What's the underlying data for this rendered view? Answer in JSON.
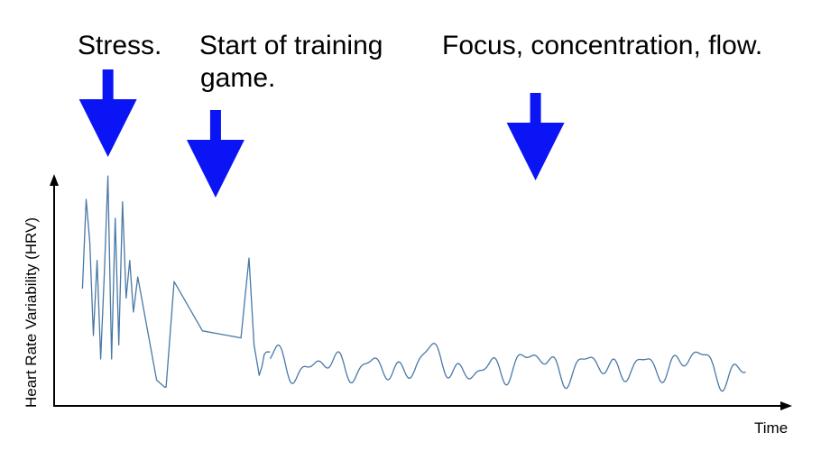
{
  "annotations": {
    "stress": "Stress.",
    "start_line1": "Start of training",
    "start_line2": "game.",
    "focus": "Focus, concentration, flow."
  },
  "colors": {
    "arrow": "#0a14f5",
    "line": "#4a78a6",
    "axis": "#000000"
  },
  "chart_data": {
    "type": "line",
    "xlabel": "Time",
    "ylabel": "Heart Rate Variability  (HRV)",
    "x_range": [
      0,
      100
    ],
    "y_range": [
      0,
      100
    ],
    "grid": false,
    "arrows_at_x": [
      7.4,
      22.2,
      66.2
    ],
    "series": [
      {
        "x": [
          3.9,
          4.4,
          4.9,
          5.4,
          5.9,
          6.4,
          6.9,
          7.4,
          7.9,
          8.4,
          8.9,
          9.4,
          9.9,
          10.4,
          10.9,
          11.5,
          14.1,
          15.2,
          15.4,
          16.5,
          20.4,
          25.7,
          26.8,
          27.5,
          28.2,
          28.6,
          28.9,
          29.2,
          29.7
        ],
        "y": [
          50,
          88,
          70,
          30,
          62,
          20,
          56,
          98,
          20,
          80,
          26,
          87,
          46,
          62,
          40,
          55,
          11,
          8,
          8,
          53,
          32,
          29,
          63,
          26,
          13,
          17,
          22,
          23,
          23
        ]
      },
      {
        "x_range": [
          29.7,
          95.1
        ],
        "baseline": 17,
        "wave": [
          [
            4.2,
            3.4,
            0.0
          ],
          [
            7.3,
            3.2,
            1.4
          ],
          [
            11.9,
            2.1,
            2.2
          ],
          [
            17.3,
            1.5,
            0.3
          ],
          [
            2.7,
            2.2,
            4.5
          ]
        ]
      }
    ]
  }
}
